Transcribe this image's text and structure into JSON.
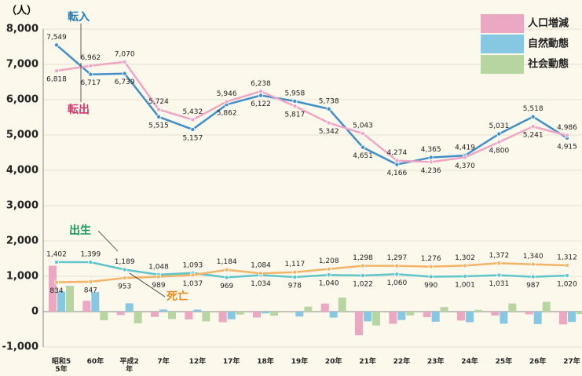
{
  "chart_data": {
    "type": "bar",
    "y_label": "（人）",
    "categories": [
      "昭和55年",
      "60年",
      "平成2年",
      "7年",
      "12年",
      "17年",
      "18年",
      "19年",
      "20年",
      "21年",
      "22年",
      "23年",
      "24年",
      "25年",
      "26年",
      "27年"
    ],
    "ylim": [
      -1000,
      8000
    ],
    "yticks": [
      {
        "value": -1000,
        "label": "-1,000"
      },
      0,
      {
        "value": 1000,
        "label": "1,000"
      },
      {
        "value": 2000,
        "label": "2,000"
      },
      {
        "value": 3000,
        "label": "3,000"
      },
      {
        "value": 4000,
        "label": "4,000"
      },
      {
        "value": 5000,
        "label": "5,000"
      },
      {
        "value": 6000,
        "label": "6,000"
      },
      {
        "value": 7000,
        "label": "7,000"
      },
      {
        "value": 8000,
        "label": "8,000"
      }
    ],
    "grid": true,
    "legend": "top-right",
    "series": [
      {
        "name": "人口増減",
        "type": "bar",
        "color": "#eaa8c3",
        "values": [
          1299,
          307,
          -95,
          -150,
          -219,
          -299,
          -166,
          2,
          228,
          -668,
          -345,
          -157,
          -252,
          -110,
          -76,
          -363
        ]
      },
      {
        "name": "自然動態",
        "type": "bar",
        "color": "#86c8e2",
        "values": [
          568,
          552,
          236,
          59,
          56,
          -215,
          -50,
          -139,
          -168,
          -276,
          -237,
          -286,
          -301,
          -341,
          -353,
          -292
        ]
      },
      {
        "name": "社会動態",
        "type": "bar",
        "color": "#b6d5a0",
        "values": [
          731,
          -245,
          -331,
          -209,
          -275,
          -84,
          -116,
          141,
          396,
          -392,
          -108,
          129,
          49,
          231,
          277,
          -71
        ]
      },
      {
        "name": "転入",
        "type": "line",
        "color": "#3f8fc8",
        "label_color": "#1c7ab9",
        "values": [
          7549,
          6717,
          6739,
          5515,
          5157,
          5862,
          6122,
          5958,
          5738,
          4651,
          4166,
          4365,
          4419,
          5031,
          5518,
          4915
        ],
        "value_labels": [
          "7,549",
          "6,717",
          "6,739",
          "5,515",
          "5,157",
          "5,862",
          "6,122",
          "5,958",
          "5,738",
          "4,651",
          "4,166",
          "4,365",
          "4,419",
          "5,031",
          "5,518",
          "4,915"
        ]
      },
      {
        "name": "転出",
        "type": "line",
        "color": "#f1a5c4",
        "label_color": "#d9336e",
        "values": [
          6818,
          6962,
          7070,
          5724,
          5432,
          5946,
          6238,
          5817,
          5342,
          5043,
          4274,
          4236,
          4370,
          4800,
          5241,
          4986
        ],
        "value_labels": [
          "6,818",
          "6,962",
          "7,070",
          "5,724",
          "5,432",
          "5,946",
          "6,238",
          "5,817",
          "5,342",
          "5,043",
          "4,274",
          "4,236",
          "4,370",
          "4,800",
          "5,241",
          "4,986"
        ]
      },
      {
        "name": "出生",
        "type": "line",
        "color": "#5ec6ca",
        "label_color": "#17985e",
        "values": [
          1402,
          1399,
          1189,
          1048,
          1093,
          969,
          1034,
          978,
          1040,
          1022,
          1060,
          990,
          1001,
          1031,
          987,
          1020
        ],
        "value_labels": [
          "1,402",
          "1,399",
          "1,189",
          "1,048",
          "1,093",
          "969",
          "1,034",
          "978",
          "1,040",
          "1,022",
          "1,060",
          "990",
          "1,001",
          "1,031",
          "987",
          "1,020"
        ]
      },
      {
        "name": "死亡",
        "type": "line",
        "color": "#f3b468",
        "label_color": "#ef8a1e",
        "values": [
          834,
          847,
          953,
          989,
          1037,
          1184,
          1084,
          1117,
          1208,
          1298,
          1297,
          1276,
          1302,
          1372,
          1340,
          1312
        ],
        "value_labels": [
          "834",
          "847",
          "953",
          "989",
          "1,037",
          "1,184",
          "1,084",
          "1,117",
          "1,208",
          "1,298",
          "1,297",
          "1,276",
          "1,302",
          "1,372",
          "1,340",
          "1,312"
        ]
      }
    ]
  }
}
